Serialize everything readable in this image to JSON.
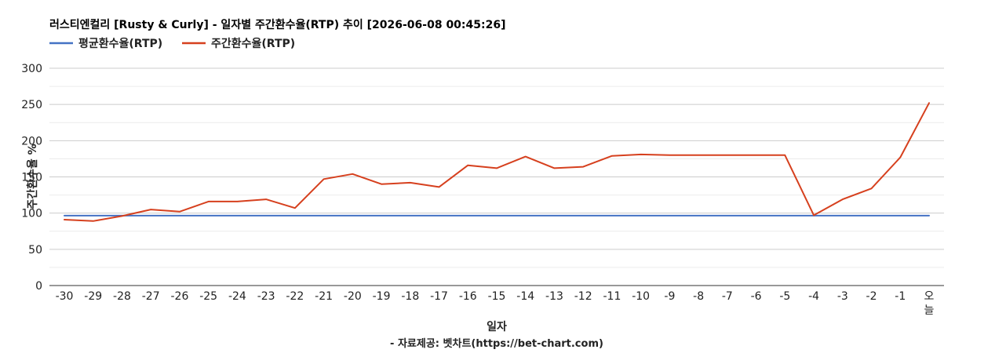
{
  "chart_data": {
    "type": "line",
    "title": "러스티엔컬리 [Rusty & Curly] - 일자별 주간환수율(RTP) 추이 [2026-06-08 00:45:26]",
    "xlabel": "일자",
    "ylabel": "주간환수율 %",
    "credit": "- 자료제공: 벳차트(https://bet-chart.com)",
    "ylim": [
      0,
      300
    ],
    "yticks": [
      "0",
      "50",
      "100",
      "150",
      "200",
      "250",
      "300"
    ],
    "grid": true,
    "legend_position": "top-left",
    "categories": [
      "-30",
      "-29",
      "-28",
      "-27",
      "-26",
      "-25",
      "-24",
      "-23",
      "-22",
      "-21",
      "-20",
      "-19",
      "-18",
      "-17",
      "-16",
      "-15",
      "-14",
      "-13",
      "-12",
      "-11",
      "-10",
      "-9",
      "-8",
      "-7",
      "-6",
      "-5",
      "-4",
      "-3",
      "-2",
      "-1",
      "오늘"
    ],
    "series": [
      {
        "name": "평균환수율(RTP)",
        "color": "#4472c4",
        "values": [
          96.5,
          96.5,
          96.5,
          96.5,
          96.5,
          96.5,
          96.5,
          96.5,
          96.5,
          96.5,
          96.5,
          96.5,
          96.5,
          96.5,
          96.5,
          96.5,
          96.5,
          96.5,
          96.5,
          96.5,
          96.5,
          96.5,
          96.5,
          96.5,
          96.5,
          96.5,
          96.5,
          96.5,
          96.5,
          96.5,
          96.5
        ]
      },
      {
        "name": "주간환수율(RTP)",
        "color": "#d6401e",
        "values": [
          91,
          89,
          96,
          105,
          102,
          116,
          116,
          119,
          107,
          147,
          154,
          140,
          142,
          136,
          166,
          162,
          178,
          162,
          164,
          179,
          181,
          180,
          180,
          180,
          180,
          180,
          97,
          119,
          134,
          177,
          252
        ]
      }
    ]
  }
}
